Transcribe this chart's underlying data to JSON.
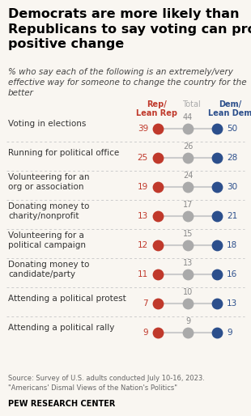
{
  "title": "Democrats are more likely than\nRepublicans to say voting can produce\npositive change",
  "subtitle_plain": "% who say each of the following is an ",
  "subtitle_bold": "extremely/very\neffective",
  "subtitle_rest": " way for someone to change the country for the\nbetter",
  "col_header_rep": "Rep/\nLean Rep",
  "col_header_total": "Total",
  "col_header_dem": "Dem/\nLean Dem",
  "categories": [
    "Voting in elections",
    "Running for political office",
    "Volunteering for an\norg or association",
    "Donating money to\ncharity/nonprofit",
    "Volunteering for a\npolitical campaign",
    "Donating money to\ncandidate/party",
    "Attending a political protest",
    "Attending a political rally"
  ],
  "rep_values": [
    39,
    25,
    19,
    13,
    12,
    11,
    7,
    9
  ],
  "total_values": [
    44,
    26,
    24,
    17,
    15,
    13,
    10,
    9
  ],
  "dem_values": [
    50,
    28,
    30,
    21,
    18,
    16,
    13,
    9
  ],
  "rep_color": "#c0392b",
  "total_color": "#aaaaaa",
  "dem_color": "#2c4f8c",
  "rep_label_color": "#c0392b",
  "dem_label_color": "#2c4f8c",
  "total_label_color": "#888888",
  "bg_color": "#f9f6f1",
  "source_text": "Source: Survey of U.S. adults conducted July 10-16, 2023.\n\"Americans' Dismal Views of the Nation's Politics\"",
  "footer_text": "PEW RESEARCH CENTER"
}
